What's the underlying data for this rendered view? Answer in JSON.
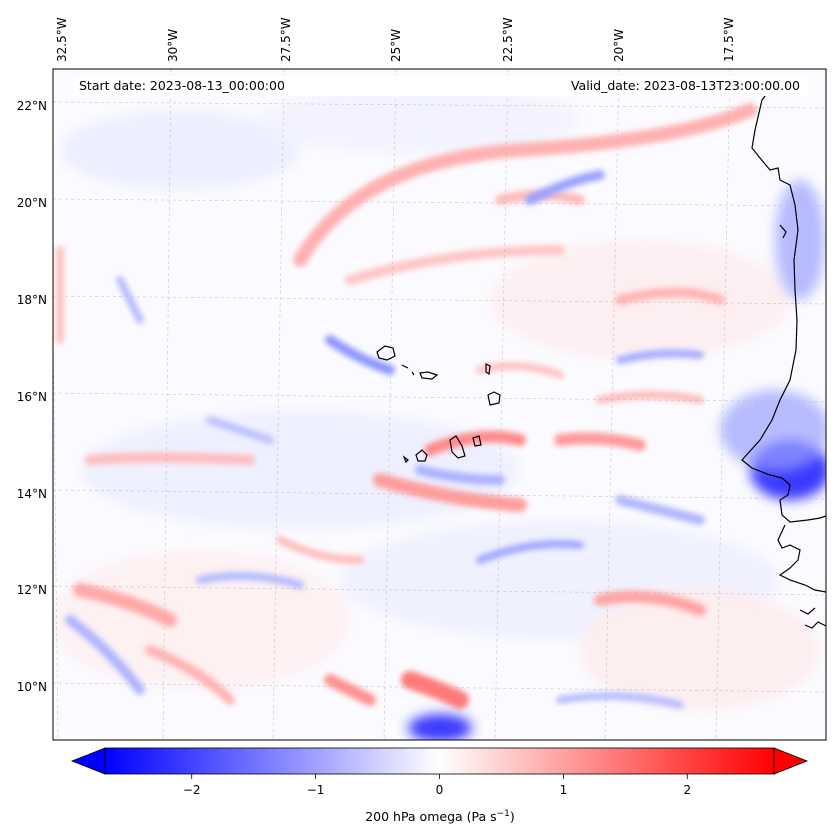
{
  "map": {
    "start_date": "Start date: 2023-08-13_00:00:00",
    "valid_date": "Valid_date: 2023-08-13T23:00:00.00",
    "lon_ticks": [
      "32.5°W",
      "30°W",
      "27.5°W",
      "25°W",
      "22.5°W",
      "20°W",
      "17.5°W"
    ],
    "lat_ticks": [
      "22°N",
      "20°N",
      "18°N",
      "16°N",
      "14°N",
      "12°N",
      "10°N"
    ],
    "field": "200 hPa omega",
    "colormap": [
      "#0000ff",
      "#ffffff",
      "#ff0000"
    ]
  },
  "colorbar": {
    "label_main": "200 hPa omega (Pa s",
    "label_sup": "−1",
    "label_end": ")",
    "ticks": [
      "−2",
      "−1",
      "0",
      "1",
      "2"
    ],
    "tick_values": [
      -2,
      -1,
      0,
      1,
      2
    ],
    "range": [
      -2.7,
      2.7
    ],
    "extend": "both"
  }
}
